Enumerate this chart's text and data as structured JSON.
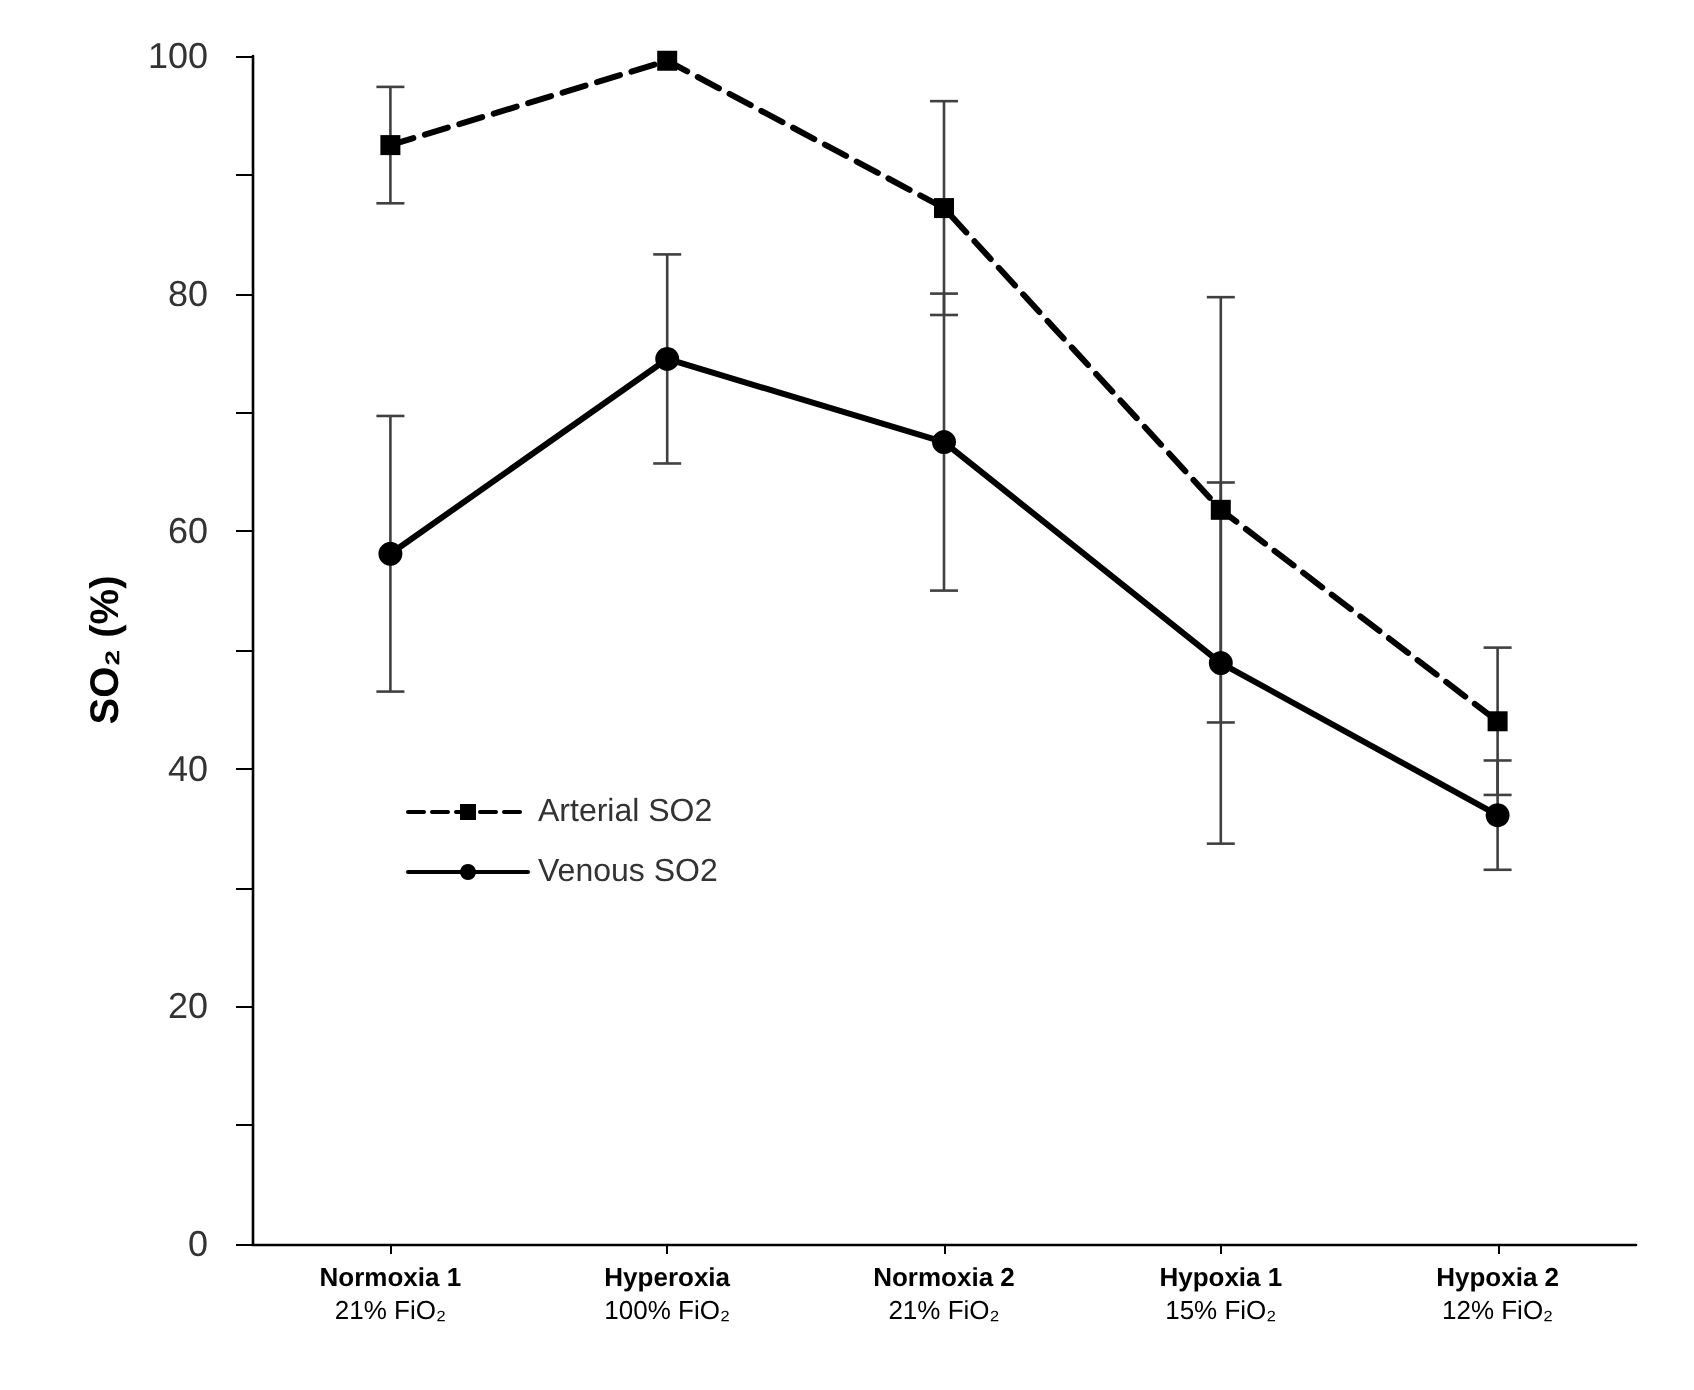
{
  "chart_data": {
    "type": "line",
    "ylabel": "SO₂ (%)",
    "categories": [
      "Normoxia 1\n21% FiO₂",
      "Hyperoxia\n100% FiO₂",
      "Normoxia 2\n21% FiO₂",
      "Hypoxia 1\n15% FiO₂",
      "Hypoxia 2\n12% FiO₂"
    ],
    "series": [
      {
        "name": "Arterial SO2",
        "color": "#000000",
        "values": [
          92.5,
          99.6,
          87.2,
          61.8,
          44.0
        ],
        "errors": [
          4.9,
          null,
          9.0,
          17.9,
          6.2
        ],
        "marker": "square",
        "line_style": "dashed"
      },
      {
        "name": "Venous SO2",
        "color": "#000000",
        "values": [
          58.1,
          74.5,
          67.5,
          48.9,
          36.1
        ],
        "errors": [
          11.6,
          8.8,
          12.5,
          15.2,
          4.6
        ],
        "marker": "circle",
        "line_style": "solid"
      }
    ],
    "ylim": [
      0,
      100
    ],
    "yticks": [
      0,
      {
        "value": 10,
        "label": null
      },
      20,
      {
        "value": 30,
        "label": null
      },
      40,
      {
        "value": 50,
        "label": null
      },
      60,
      {
        "value": 70,
        "label": null
      },
      80,
      {
        "value": 90,
        "label": null
      },
      100
    ],
    "grid": false,
    "legend": "left"
  }
}
